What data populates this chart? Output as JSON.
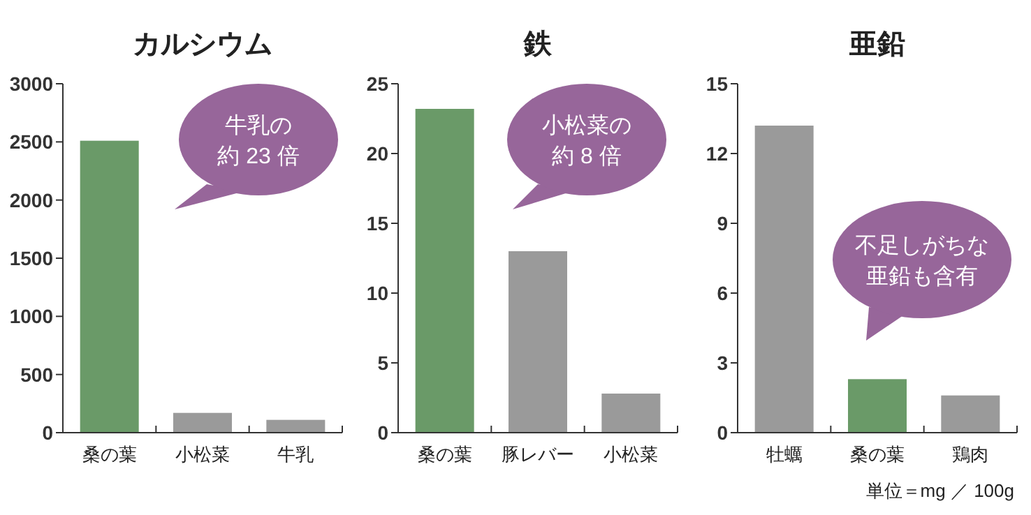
{
  "chart_data": [
    {
      "type": "bar",
      "title": "カルシウム",
      "categories": [
        "桑の葉",
        "小松菜",
        "牛乳"
      ],
      "values": [
        2510,
        170,
        110
      ],
      "colors": [
        "#6a9a68",
        "#9a9a9a",
        "#9a9a9a"
      ],
      "ylim": [
        0,
        3000
      ],
      "yticks": [
        0,
        500,
        1000,
        1500,
        2000,
        2500,
        3000
      ],
      "grid": false,
      "annotations": [
        "牛乳の約 23 倍"
      ]
    },
    {
      "type": "bar",
      "title": "鉄",
      "categories": [
        "桑の葉",
        "豚レバー",
        "小松菜"
      ],
      "values": [
        23.2,
        13.0,
        2.8
      ],
      "colors": [
        "#6a9a68",
        "#9a9a9a",
        "#9a9a9a"
      ],
      "ylim": [
        0,
        25
      ],
      "yticks": [
        0,
        5,
        10,
        15,
        20,
        25
      ],
      "grid": false,
      "annotations": [
        "小松菜の約 8 倍"
      ]
    },
    {
      "type": "bar",
      "title": "亜鉛",
      "categories": [
        "牡蠣",
        "桑の葉",
        "鶏肉"
      ],
      "values": [
        13.2,
        2.3,
        1.6
      ],
      "colors": [
        "#9a9a9a",
        "#6a9a68",
        "#9a9a9a"
      ],
      "ylim": [
        0,
        15
      ],
      "yticks": [
        0,
        3,
        6,
        9,
        12,
        15
      ],
      "grid": false,
      "annotations": [
        "不足しがちな亜鉛も含有",
        "単位＝mg ／ 100g"
      ]
    }
  ]
}
